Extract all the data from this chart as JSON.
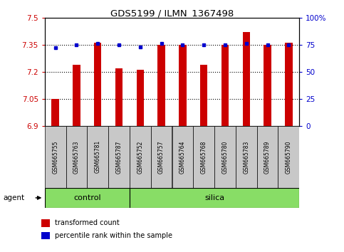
{
  "title": "GDS5199 / ILMN_1367498",
  "samples": [
    "GSM665755",
    "GSM665763",
    "GSM665781",
    "GSM665787",
    "GSM665752",
    "GSM665757",
    "GSM665764",
    "GSM665768",
    "GSM665780",
    "GSM665783",
    "GSM665789",
    "GSM665790"
  ],
  "red_values": [
    7.05,
    7.24,
    7.36,
    7.22,
    7.21,
    7.35,
    7.35,
    7.24,
    7.35,
    7.42,
    7.35,
    7.36
  ],
  "blue_percentiles": [
    72,
    75,
    76,
    75,
    73,
    76,
    75,
    75,
    75,
    76,
    75,
    75
  ],
  "y_min": 6.9,
  "y_max": 7.5,
  "y_ticks": [
    6.9,
    7.05,
    7.2,
    7.35,
    7.5
  ],
  "y_tick_labels": [
    "6.9",
    "7.05",
    "7.2",
    "7.35",
    "7.5"
  ],
  "right_y_ticks": [
    0,
    25,
    50,
    75,
    100
  ],
  "right_y_tick_labels": [
    "0",
    "25",
    "50",
    "75",
    "100%"
  ],
  "groups": [
    {
      "name": "control",
      "n": 4
    },
    {
      "name": "silica",
      "n": 8
    }
  ],
  "bar_color": "#CC0000",
  "dot_color": "#0000CC",
  "label_color_left": "#CC0000",
  "label_color_right": "#0000CC",
  "group_bg": "#88DD66",
  "tick_bg": "#C8C8C8",
  "agent_label": "agent",
  "legend_red": "transformed count",
  "legend_blue": "percentile rank within the sample",
  "bar_width": 0.35
}
